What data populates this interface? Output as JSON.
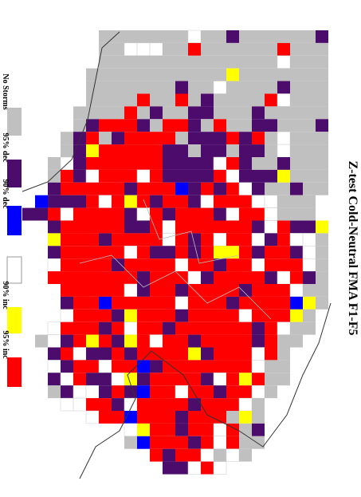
{
  "title": "Z-test Cold-Neutral FMA F1-F5",
  "legend": [
    {
      "label": "No Storms",
      "color": "#c0c0c0"
    },
    {
      "label": "95% dec",
      "color": "#4b0c6b"
    },
    {
      "label": "90% dec",
      "color": "#0000ff"
    },
    {
      "label": "90% inc",
      "color": "#ffffff"
    },
    {
      "label": "95% inc",
      "color": "#ffff00"
    },
    {
      "label": "",
      "color": "#ff0000"
    }
  ]
}
